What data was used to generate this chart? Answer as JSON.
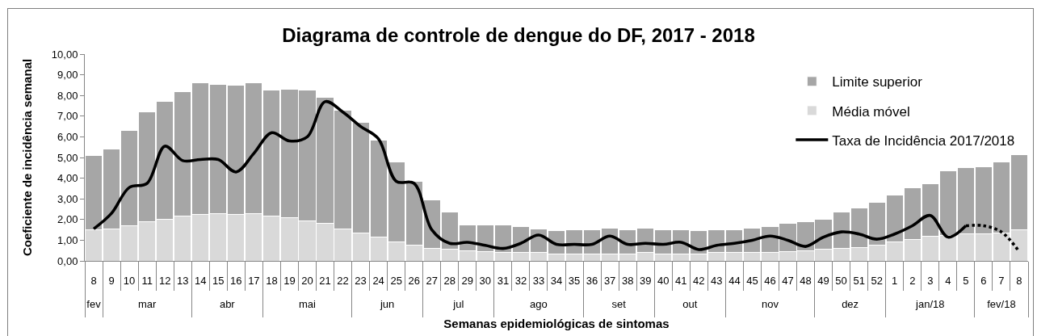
{
  "chart_data": {
    "type": "bar",
    "title": "Diagrama de controle de dengue do DF, 2017 - 2018",
    "xlabel": "Semanas epidemiológicas de sintomas",
    "ylabel": "Coeficiente de incidência semanal",
    "categories": [
      "8",
      "9",
      "10",
      "11",
      "12",
      "13",
      "14",
      "15",
      "16",
      "17",
      "18",
      "19",
      "20",
      "21",
      "22",
      "23",
      "24",
      "25",
      "26",
      "27",
      "28",
      "29",
      "30",
      "31",
      "32",
      "33",
      "34",
      "35",
      "36",
      "37",
      "38",
      "39",
      "40",
      "41",
      "42",
      "43",
      "44",
      "45",
      "46",
      "47",
      "48",
      "49",
      "50",
      "51",
      "52",
      "1",
      "2",
      "3",
      "4",
      "5",
      "6",
      "7",
      "8"
    ],
    "stacked": true,
    "series": [
      {
        "name": "Média móvel",
        "color": "#d9d9d9",
        "values": [
          1.5,
          1.55,
          1.7,
          1.9,
          2.0,
          2.15,
          2.25,
          2.3,
          2.25,
          2.3,
          2.15,
          2.1,
          1.95,
          1.8,
          1.55,
          1.35,
          1.15,
          0.9,
          0.75,
          0.6,
          0.55,
          0.5,
          0.45,
          0.4,
          0.4,
          0.4,
          0.35,
          0.35,
          0.35,
          0.35,
          0.35,
          0.4,
          0.35,
          0.35,
          0.35,
          0.4,
          0.4,
          0.4,
          0.4,
          0.45,
          0.5,
          0.55,
          0.6,
          0.65,
          0.75,
          0.9,
          1.05,
          1.2,
          1.25,
          1.3,
          1.3,
          1.35,
          1.5
        ]
      },
      {
        "name": "Limite superior",
        "color": "#a6a6a6",
        "values": [
          3.6,
          3.85,
          4.6,
          5.3,
          5.7,
          6.05,
          6.35,
          6.25,
          6.25,
          6.3,
          6.1,
          6.2,
          6.3,
          6.1,
          5.75,
          5.35,
          4.7,
          3.9,
          3.1,
          2.35,
          1.8,
          1.25,
          1.3,
          1.35,
          1.25,
          1.15,
          1.1,
          1.15,
          1.15,
          1.25,
          1.15,
          1.2,
          1.15,
          1.15,
          1.1,
          1.1,
          1.1,
          1.2,
          1.25,
          1.35,
          1.4,
          1.45,
          1.75,
          1.9,
          2.1,
          2.3,
          2.5,
          2.55,
          3.1,
          3.2,
          3.25,
          3.45,
          3.65
        ]
      },
      {
        "name": "Taxa de Incidência 2017/2018",
        "type": "line",
        "color": "#000000",
        "values": [
          1.55,
          2.3,
          3.55,
          3.75,
          5.55,
          4.85,
          4.9,
          4.9,
          4.3,
          5.2,
          6.2,
          5.8,
          6.0,
          7.7,
          7.2,
          6.5,
          5.9,
          3.85,
          3.75,
          1.5,
          0.85,
          0.9,
          0.75,
          0.6,
          0.85,
          1.25,
          0.8,
          0.8,
          0.8,
          1.2,
          0.8,
          0.85,
          0.8,
          0.9,
          0.55,
          0.75,
          0.85,
          1.0,
          1.2,
          1.0,
          0.7,
          1.15,
          1.4,
          1.3,
          1.05,
          1.3,
          1.7,
          2.2,
          1.15,
          1.7,
          null,
          null,
          null
        ]
      },
      {
        "type": "line",
        "color": "#000000",
        "line_style": "dotted",
        "values": [
          null,
          null,
          null,
          null,
          null,
          null,
          null,
          null,
          null,
          null,
          null,
          null,
          null,
          null,
          null,
          null,
          null,
          null,
          null,
          null,
          null,
          null,
          null,
          null,
          null,
          null,
          null,
          null,
          null,
          null,
          null,
          null,
          null,
          null,
          null,
          null,
          null,
          null,
          null,
          null,
          null,
          null,
          null,
          null,
          null,
          null,
          null,
          null,
          null,
          1.7,
          1.7,
          1.4,
          0.45
        ]
      }
    ],
    "ylim": [
      0,
      10
    ],
    "yticks": [
      {
        "value": 0,
        "label": "0,00"
      },
      {
        "value": 1,
        "label": "1,00"
      },
      {
        "value": 2,
        "label": "2,00"
      },
      {
        "value": 3,
        "label": "3,00"
      },
      {
        "value": 4,
        "label": "4,00"
      },
      {
        "value": 5,
        "label": "5,00"
      },
      {
        "value": 6,
        "label": "6,00"
      },
      {
        "value": 7,
        "label": "7,00"
      },
      {
        "value": 8,
        "label": "8,00"
      },
      {
        "value": 9,
        "label": "9,00"
      },
      {
        "value": 10,
        "label": "10,00"
      }
    ],
    "x2lim": [
      "2017-02-19",
      "2018-02-25"
    ],
    "x2ticks": [
      {
        "value": "2017-02-22T12:00",
        "label": "fev"
      },
      {
        "value": "2017-03-15T12:00",
        "label": "mar"
      },
      {
        "value": "2017-04-16",
        "label": "abr"
      },
      {
        "value": "2017-05-17T12:00",
        "label": "mai"
      },
      {
        "value": "2017-06-18",
        "label": "jun"
      },
      {
        "value": "2017-07-16",
        "label": "jul"
      },
      {
        "value": "2017-08-16T12:00",
        "label": "ago"
      },
      {
        "value": "2017-09-17",
        "label": "set"
      },
      {
        "value": "2017-10-15",
        "label": "out"
      },
      {
        "value": "2017-11-15T12:00",
        "label": "nov"
      },
      {
        "value": "2017-12-17",
        "label": "dez"
      },
      {
        "value": "2018-01-17T12:00",
        "label": "jan/18"
      },
      {
        "value": "2018-02-14T12:00",
        "label": "fev/18"
      }
    ],
    "legend": "top right"
  }
}
